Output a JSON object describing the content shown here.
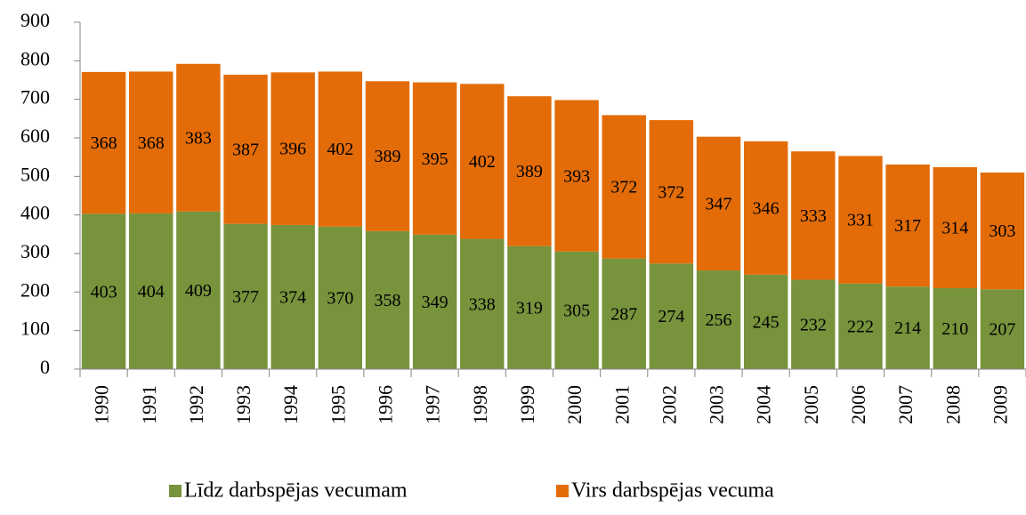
{
  "chart_data": {
    "type": "bar",
    "stacked": true,
    "categories": [
      "1990",
      "1991",
      "1992",
      "1993",
      "1994",
      "1995",
      "1996",
      "1997",
      "1998",
      "1999",
      "2000",
      "2001",
      "2002",
      "2003",
      "2004",
      "2005",
      "2006",
      "2007",
      "2008",
      "2009"
    ],
    "series": [
      {
        "name": "Līdz darbspējas vecumam",
        "color": "#77933c",
        "values": [
          403,
          404,
          409,
          377,
          374,
          370,
          358,
          349,
          338,
          319,
          305,
          287,
          274,
          256,
          245,
          232,
          222,
          214,
          210,
          207
        ]
      },
      {
        "name": "Virs darbspējas vecuma",
        "color": "#e36c09",
        "values": [
          368,
          368,
          383,
          387,
          396,
          402,
          389,
          395,
          402,
          389,
          393,
          372,
          372,
          347,
          346,
          333,
          331,
          317,
          314,
          303
        ]
      }
    ],
    "ylim": [
      0,
      900
    ],
    "yticks": [
      0,
      100,
      200,
      300,
      400,
      500,
      600,
      700,
      800,
      900
    ],
    "legend": "bottom"
  }
}
